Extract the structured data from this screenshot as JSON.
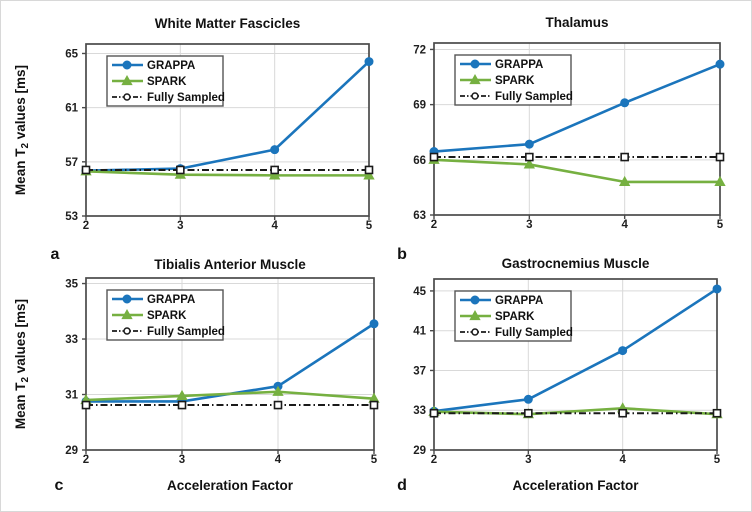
{
  "figure": {
    "background": "#ffffff",
    "x_axis_label": "Acceleration Factor",
    "y_axis_label": "Mean T2 values [ms]",
    "panel_letters": [
      "a",
      "b",
      "c",
      "d"
    ],
    "colors": {
      "grappa": "#1b75bc",
      "spark": "#76b041",
      "fully_sampled": "#1a1a1a",
      "grid": "#d9d9d9",
      "axis": "#4a4a4a",
      "text": "#1f1f1f"
    },
    "legend_labels": [
      "GRAPPA",
      "SPARK",
      "Fully Sampled"
    ]
  },
  "chart_data": [
    {
      "type": "line",
      "panel_letter": "a",
      "title": "White Matter Fascicles",
      "xlabel": "",
      "ylabel": "Mean T2 values [ms]",
      "x": [
        2,
        3,
        4,
        5
      ],
      "xticks": [
        2,
        3,
        4,
        5
      ],
      "yticks": [
        53,
        57,
        61,
        65
      ],
      "ylim": [
        53,
        65.7
      ],
      "xlim": [
        2,
        5
      ],
      "grid": true,
      "legend_position": "top-left",
      "series": [
        {
          "name": "GRAPPA",
          "color": "#1b75bc",
          "marker": "circle",
          "line": "solid",
          "values": [
            56.35,
            56.5,
            57.9,
            64.4
          ]
        },
        {
          "name": "SPARK",
          "color": "#76b041",
          "marker": "triangle",
          "line": "solid",
          "values": [
            56.3,
            56.05,
            56.0,
            56.0
          ]
        },
        {
          "name": "Fully Sampled",
          "color": "#1a1a1a",
          "marker": "square-open",
          "line": "dashdot",
          "values": [
            56.4,
            56.4,
            56.4,
            56.4
          ]
        }
      ]
    },
    {
      "type": "line",
      "panel_letter": "b",
      "title": "Thalamus",
      "xlabel": "",
      "ylabel": "",
      "x": [
        2,
        3,
        4,
        5
      ],
      "xticks": [
        2,
        3,
        4,
        5
      ],
      "yticks": [
        63,
        66,
        69,
        72
      ],
      "ylim": [
        63,
        72.35
      ],
      "xlim": [
        2,
        5
      ],
      "grid": true,
      "legend_position": "top-left",
      "series": [
        {
          "name": "GRAPPA",
          "color": "#1b75bc",
          "marker": "circle",
          "line": "solid",
          "values": [
            66.45,
            66.85,
            69.1,
            71.2
          ]
        },
        {
          "name": "SPARK",
          "color": "#76b041",
          "marker": "triangle",
          "line": "solid",
          "values": [
            66.0,
            65.75,
            64.8,
            64.8
          ]
        },
        {
          "name": "Fully Sampled",
          "color": "#1a1a1a",
          "marker": "square-open",
          "line": "dashdot",
          "values": [
            66.15,
            66.15,
            66.15,
            66.15
          ]
        }
      ]
    },
    {
      "type": "line",
      "panel_letter": "c",
      "title": "Tibialis Anterior Muscle",
      "xlabel": "Acceleration Factor",
      "ylabel": "Mean T2 values [ms]",
      "x": [
        2,
        3,
        4,
        5
      ],
      "xticks": [
        2,
        3,
        4,
        5
      ],
      "yticks": [
        29,
        31,
        33,
        35
      ],
      "ylim": [
        29,
        35.2
      ],
      "xlim": [
        2,
        5
      ],
      "grid": true,
      "legend_position": "top-left",
      "series": [
        {
          "name": "GRAPPA",
          "color": "#1b75bc",
          "marker": "circle",
          "line": "solid",
          "values": [
            30.75,
            30.75,
            31.3,
            33.55
          ]
        },
        {
          "name": "SPARK",
          "color": "#76b041",
          "marker": "triangle",
          "line": "solid",
          "values": [
            30.8,
            30.95,
            31.1,
            30.85
          ]
        },
        {
          "name": "Fully Sampled",
          "color": "#1a1a1a",
          "marker": "square-open",
          "line": "dashdot",
          "values": [
            30.62,
            30.62,
            30.62,
            30.62
          ]
        }
      ]
    },
    {
      "type": "line",
      "panel_letter": "d",
      "title": "Gastrocnemius Muscle",
      "xlabel": "Acceleration Factor",
      "ylabel": "",
      "x": [
        2,
        3,
        4,
        5
      ],
      "xticks": [
        2,
        3,
        4,
        5
      ],
      "yticks": [
        29,
        33,
        37,
        41,
        45
      ],
      "ylim": [
        29,
        46.2
      ],
      "xlim": [
        2,
        5
      ],
      "grid": true,
      "legend_position": "top-left",
      "series": [
        {
          "name": "GRAPPA",
          "color": "#1b75bc",
          "marker": "circle",
          "line": "solid",
          "values": [
            32.9,
            34.1,
            39.0,
            45.2
          ]
        },
        {
          "name": "SPARK",
          "color": "#76b041",
          "marker": "triangle",
          "line": "solid",
          "values": [
            32.85,
            32.6,
            33.2,
            32.6
          ]
        },
        {
          "name": "Fully Sampled",
          "color": "#1a1a1a",
          "marker": "square-open",
          "line": "dashdot",
          "values": [
            32.7,
            32.7,
            32.7,
            32.7
          ]
        }
      ]
    }
  ]
}
